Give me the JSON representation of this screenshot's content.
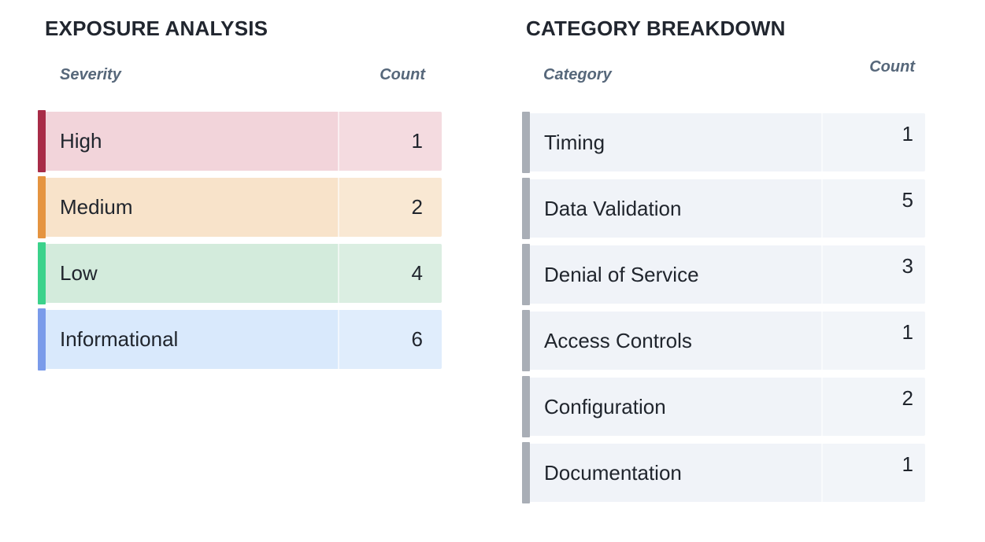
{
  "panels": [
    {
      "title": "EXPOSURE ANALYSIS",
      "columns": {
        "label": "Severity",
        "count": "Count"
      },
      "rows": [
        {
          "label": "High",
          "count": "1",
          "bg": "#f2d4da",
          "accent": "#a82c47"
        },
        {
          "label": "Medium",
          "count": "2",
          "bg": "#f8e3ca",
          "accent": "#e59440"
        },
        {
          "label": "Low",
          "count": "4",
          "bg": "#d3ebdc",
          "accent": "#3bd28b"
        },
        {
          "label": "Informational",
          "count": "6",
          "bg": "#d9e9fc",
          "accent": "#7a9bea"
        }
      ]
    },
    {
      "title": "CATEGORY BREAKDOWN",
      "columns": {
        "label": "Category",
        "count": "Count"
      },
      "rows": [
        {
          "label": "Timing",
          "count": "1",
          "bg": "#f0f3f8",
          "accent": "#a9aeb6"
        },
        {
          "label": "Data Validation",
          "count": "5",
          "bg": "#f0f3f8",
          "accent": "#a9aeb6"
        },
        {
          "label": "Denial of Service",
          "count": "3",
          "bg": "#f0f3f8",
          "accent": "#a9aeb6"
        },
        {
          "label": "Access Controls",
          "count": "1",
          "bg": "#f0f3f8",
          "accent": "#a9aeb6"
        },
        {
          "label": "Configuration",
          "count": "2",
          "bg": "#f0f3f8",
          "accent": "#a9aeb6"
        },
        {
          "label": "Documentation",
          "count": "1",
          "bg": "#f0f3f8",
          "accent": "#a9aeb6"
        }
      ]
    }
  ],
  "colors": {
    "background": "#ffffff",
    "title_text": "#21262f",
    "header_text": "#56677a",
    "row_text": "#20252d",
    "high_accent": "#a82c47",
    "medium_accent": "#e59440",
    "low_accent": "#3bd28b",
    "informational_accent": "#7a9bea",
    "category_accent": "#a9aeb6"
  },
  "chart_data": [
    {
      "type": "table",
      "title": "EXPOSURE ANALYSIS",
      "columns": [
        "Severity",
        "Count"
      ],
      "rows": [
        [
          "High",
          1
        ],
        [
          "Medium",
          2
        ],
        [
          "Low",
          4
        ],
        [
          "Informational",
          6
        ]
      ]
    },
    {
      "type": "table",
      "title": "CATEGORY BREAKDOWN",
      "columns": [
        "Category",
        "Count"
      ],
      "rows": [
        [
          "Timing",
          1
        ],
        [
          "Data Validation",
          5
        ],
        [
          "Denial of Service",
          3
        ],
        [
          "Access Controls",
          1
        ],
        [
          "Configuration",
          2
        ],
        [
          "Documentation",
          1
        ]
      ]
    }
  ]
}
